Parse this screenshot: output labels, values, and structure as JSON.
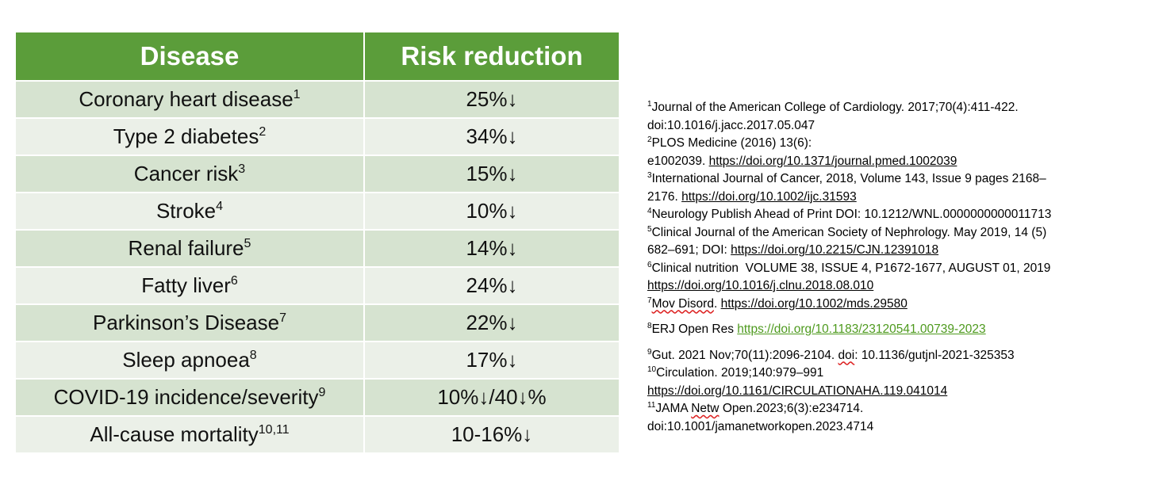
{
  "table": {
    "headers": [
      "Disease",
      "Risk reduction"
    ],
    "rows": [
      {
        "disease": "Coronary heart disease",
        "ref": "1",
        "reduction": "25%↓"
      },
      {
        "disease": "Type 2 diabetes",
        "ref": "2",
        "reduction": "34%↓"
      },
      {
        "disease": "Cancer risk",
        "ref": "3",
        "reduction": "15%↓"
      },
      {
        "disease": "Stroke",
        "ref": "4",
        "reduction": "10%↓"
      },
      {
        "disease": "Renal failure",
        "ref": "5",
        "reduction": "14%↓"
      },
      {
        "disease": "Fatty liver",
        "ref": "6",
        "reduction": "24%↓"
      },
      {
        "disease": "Parkinson’s Disease",
        "ref": "7",
        "reduction": "22%↓"
      },
      {
        "disease": "Sleep apnoea",
        "ref": "8",
        "reduction": "17%↓"
      },
      {
        "disease": "COVID-19 incidence/severity",
        "ref": "9",
        "reduction": "10%↓/40↓%"
      },
      {
        "disease": "All-cause mortality",
        "ref": "10,11",
        "reduction": "10-16%↓"
      }
    ]
  },
  "colors": {
    "header_bg": "#5b9d3a",
    "row_dark": "#d6e3d0",
    "row_light": "#ebf0e8",
    "green_link": "#4e9a1e"
  },
  "references": {
    "r1": {
      "num": "1",
      "line1": "Journal of the American College of Cardiology. 2017;70(4):411-422.",
      "line2": "doi:10.1016/j.jacc.2017.05.047"
    },
    "r2": {
      "num": "2",
      "line1": "PLOS Medicine (2016) 13(6):",
      "line2_prefix": "e1002039. ",
      "link": "https://doi.org/10.1371/journal.pmed.1002039"
    },
    "r3": {
      "num": "3",
      "line1": "International Journal of Cancer, 2018, Volume 143, Issue 9 pages 2168–",
      "line2_prefix": "2176. ",
      "link": "https://doi.org/10.1002/ijc.31593"
    },
    "r4": {
      "num": "4",
      "line1": "Neurology Publish Ahead of Print DOI: 10.1212/WNL.0000000000011713"
    },
    "r5": {
      "num": "5",
      "line1": "Clinical Journal of the American Society of Nephrology. May 2019, 14 (5)",
      "line2_prefix": "682–691; DOI: ",
      "link": "https://doi.org/10.2215/CJN.12391018"
    },
    "r6": {
      "num": "6",
      "line1": "Clinical nutrition  VOLUME 38, ISSUE 4, P1672-1677, AUGUST 01, 2019",
      "link": "https://doi.org/10.1016/j.clnu.2018.08.010"
    },
    "r7": {
      "num": "7",
      "squiggle": "Mov Disord",
      "suffix": ". ",
      "link": "https://doi.org/10.1002/mds.29580"
    },
    "r8": {
      "num": "8",
      "prefix": "ERJ Open Res ",
      "link": "https://doi.org/10.1183/23120541.00739-2023"
    },
    "r9": {
      "num": "9",
      "prefix": "Gut. 2021 Nov;70(11):2096-2104. ",
      "squiggle": "doi",
      "suffix": ": 10.1136/gutjnl-2021-325353"
    },
    "r10": {
      "num": "10",
      "line1": "Circulation. 2019;140:979–991",
      "link": "https://doi.org/10.1161/CIRCULATIONAHA.119.041014"
    },
    "r11": {
      "num": "11",
      "prefix": "JAMA ",
      "squiggle": "Netw",
      "suffix": " Open.2023;6(3):e234714.",
      "line2": "doi:10.1001/jamanetworkopen.2023.4714"
    }
  }
}
